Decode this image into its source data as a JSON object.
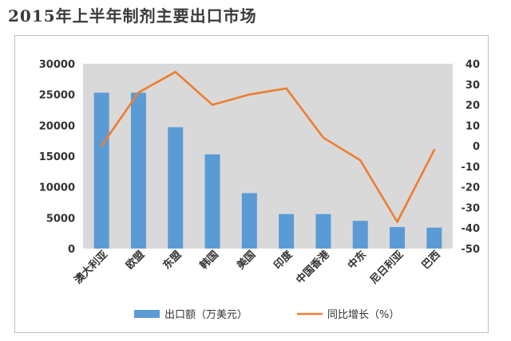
{
  "title": "2015年上半年制剂主要出口市场",
  "chart_data": {
    "type": "bar",
    "categories": [
      "澳大利亚",
      "欧盟",
      "东盟",
      "韩国",
      "美国",
      "印度",
      "中国香港",
      "中东",
      "尼日利亚",
      "巴西"
    ],
    "series": [
      {
        "name": "出口额（万美元）",
        "type": "bar",
        "axis": "left",
        "color": "#5b9bd5",
        "values": [
          25300,
          25300,
          19700,
          15300,
          9000,
          5600,
          5600,
          4500,
          3500,
          3400
        ]
      },
      {
        "name": "同比增长（%）",
        "type": "line",
        "axis": "right",
        "color": "#ed7d31",
        "values": [
          0,
          26,
          36,
          20,
          25,
          28,
          4,
          -7,
          -37,
          -2
        ]
      }
    ],
    "y_left": {
      "min": 0,
      "max": 30000,
      "ticks": [
        "0",
        "5000",
        "10000",
        "15000",
        "20000",
        "25000",
        "30000"
      ]
    },
    "y_right": {
      "min": -50,
      "max": 40,
      "ticks": [
        "-50",
        "-40",
        "-30",
        "-20",
        "-10",
        "0",
        "10",
        "20",
        "30",
        "40"
      ]
    },
    "plot_background": "#d9d9d9",
    "grid": false,
    "legend_position": "bottom"
  }
}
